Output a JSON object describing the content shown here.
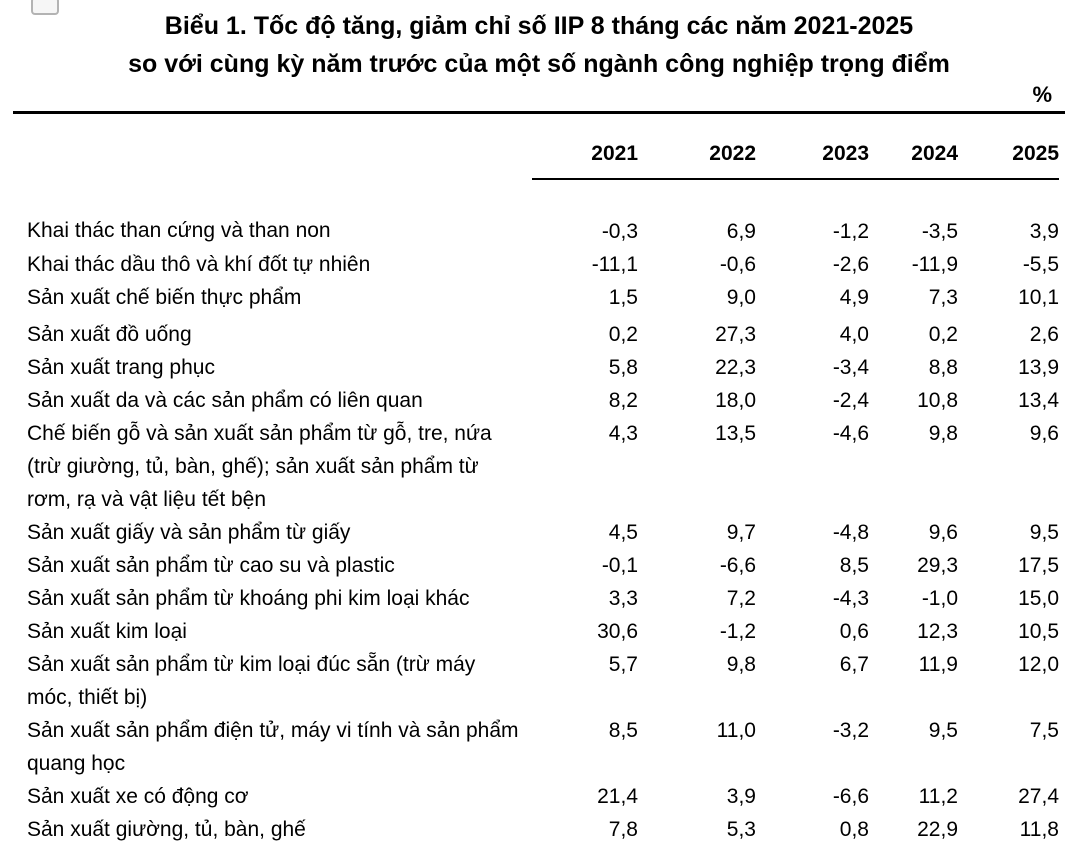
{
  "title": {
    "line1": "Biểu 1. Tốc độ tăng, giảm chỉ số IIP 8 tháng các năm 2021-2025",
    "line2": "so với cùng kỳ năm trước của một số ngành công nghiệp trọng điểm"
  },
  "unit_label": "%",
  "table": {
    "year_headers": [
      "2021",
      "2022",
      "2023",
      "2024",
      "2025"
    ],
    "rows": [
      {
        "label": "Khai thác than cứng và than non",
        "values": [
          "-0,3",
          "6,9",
          "-1,2",
          "-3,5",
          "3,9"
        ]
      },
      {
        "label": "Khai thác dầu thô và khí đốt tự nhiên",
        "values": [
          "-11,1",
          "-0,6",
          "-2,6",
          "-11,9",
          "-5,5"
        ]
      },
      {
        "label": "Sản xuất chế biến thực phẩm",
        "values": [
          "1,5",
          "9,0",
          "4,9",
          "7,3",
          "10,1"
        ]
      },
      {
        "label": "Sản xuất đồ uống",
        "values": [
          "0,2",
          "27,3",
          "4,0",
          "0,2",
          "2,6"
        ]
      },
      {
        "label": "Sản xuất trang phục",
        "values": [
          "5,8",
          "22,3",
          "-3,4",
          "8,8",
          "13,9"
        ]
      },
      {
        "label": "Sản xuất da và các sản phẩm có liên quan",
        "values": [
          "8,2",
          "18,0",
          "-2,4",
          "10,8",
          "13,4"
        ]
      },
      {
        "label": "Chế biến gỗ và sản xuất sản phẩm từ gỗ, tre, nứa (trừ giường, tủ, bàn, ghế); sản xuất sản phẩm từ rơm, rạ và vật liệu tết bện",
        "values": [
          "4,3",
          "13,5",
          "-4,6",
          "9,8",
          "9,6"
        ]
      },
      {
        "label": "Sản xuất giấy và sản phẩm từ giấy",
        "values": [
          "4,5",
          "9,7",
          "-4,8",
          "9,6",
          "9,5"
        ]
      },
      {
        "label": "Sản xuất sản phẩm từ cao su và plastic",
        "values": [
          "-0,1",
          "-6,6",
          "8,5",
          "29,3",
          "17,5"
        ]
      },
      {
        "label": "Sản xuất sản phẩm từ khoáng phi kim loại khác",
        "values": [
          "3,3",
          "7,2",
          "-4,3",
          "-1,0",
          "15,0"
        ]
      },
      {
        "label": "Sản xuất kim loại",
        "values": [
          "30,6",
          "-1,2",
          "0,6",
          "12,3",
          "10,5"
        ]
      },
      {
        "label": "Sản xuất sản phẩm từ kim loại đúc sẵn (trừ máy móc, thiết bị)",
        "values": [
          "5,7",
          "9,8",
          "6,7",
          "11,9",
          "12,0"
        ]
      },
      {
        "label": "Sản xuất sản phẩm điện tử, máy vi tính và sản phẩm quang học",
        "values": [
          "8,5",
          "11,0",
          "-3,2",
          "9,5",
          "7,5"
        ]
      },
      {
        "label": "Sản xuất xe có động cơ",
        "values": [
          "21,4",
          "3,9",
          "-6,6",
          "11,2",
          "27,4"
        ]
      },
      {
        "label": "Sản xuất giường, tủ, bàn, ghế",
        "values": [
          "7,8",
          "5,3",
          "0,8",
          "22,9",
          "11,8"
        ]
      }
    ]
  },
  "chart_data": {
    "type": "table",
    "title": "Biểu 1. Tốc độ tăng, giảm chỉ số IIP 8 tháng các năm 2021-2025 so với cùng kỳ năm trước của một số ngành công nghiệp trọng điểm",
    "unit": "%",
    "columns": [
      "2021",
      "2022",
      "2023",
      "2024",
      "2025"
    ],
    "rows": [
      {
        "label": "Khai thác than cứng và than non",
        "values": [
          -0.3,
          6.9,
          -1.2,
          -3.5,
          3.9
        ]
      },
      {
        "label": "Khai thác dầu thô và khí đốt tự nhiên",
        "values": [
          -11.1,
          -0.6,
          -2.6,
          -11.9,
          -5.5
        ]
      },
      {
        "label": "Sản xuất chế biến thực phẩm",
        "values": [
          1.5,
          9.0,
          4.9,
          7.3,
          10.1
        ]
      },
      {
        "label": "Sản xuất đồ uống",
        "values": [
          0.2,
          27.3,
          4.0,
          0.2,
          2.6
        ]
      },
      {
        "label": "Sản xuất trang phục",
        "values": [
          5.8,
          22.3,
          -3.4,
          8.8,
          13.9
        ]
      },
      {
        "label": "Sản xuất da và các sản phẩm có liên quan",
        "values": [
          8.2,
          18.0,
          -2.4,
          10.8,
          13.4
        ]
      },
      {
        "label": "Chế biến gỗ và sản xuất sản phẩm từ gỗ, tre, nứa (trừ giường, tủ, bàn, ghế); sản xuất sản phẩm từ rơm, rạ và vật liệu tết bện",
        "values": [
          4.3,
          13.5,
          -4.6,
          9.8,
          9.6
        ]
      },
      {
        "label": "Sản xuất giấy và sản phẩm từ giấy",
        "values": [
          4.5,
          9.7,
          -4.8,
          9.6,
          9.5
        ]
      },
      {
        "label": "Sản xuất sản phẩm từ cao su và plastic",
        "values": [
          -0.1,
          -6.6,
          8.5,
          29.3,
          17.5
        ]
      },
      {
        "label": "Sản xuất sản phẩm từ khoáng phi kim loại khác",
        "values": [
          3.3,
          7.2,
          -4.3,
          -1.0,
          15.0
        ]
      },
      {
        "label": "Sản xuất kim loại",
        "values": [
          30.6,
          -1.2,
          0.6,
          12.3,
          10.5
        ]
      },
      {
        "label": "Sản xuất sản phẩm từ kim loại đúc sẵn (trừ máy móc, thiết bị)",
        "values": [
          5.7,
          9.8,
          6.7,
          11.9,
          12.0
        ]
      },
      {
        "label": "Sản xuất sản phẩm điện tử, máy vi tính và sản phẩm quang học",
        "values": [
          8.5,
          11.0,
          -3.2,
          9.5,
          7.5
        ]
      },
      {
        "label": "Sản xuất xe có động cơ",
        "values": [
          21.4,
          3.9,
          -6.6,
          11.2,
          27.4
        ]
      },
      {
        "label": "Sản xuất giường, tủ, bàn, ghế",
        "values": [
          7.8,
          5.3,
          0.8,
          22.9,
          11.8
        ]
      }
    ]
  }
}
